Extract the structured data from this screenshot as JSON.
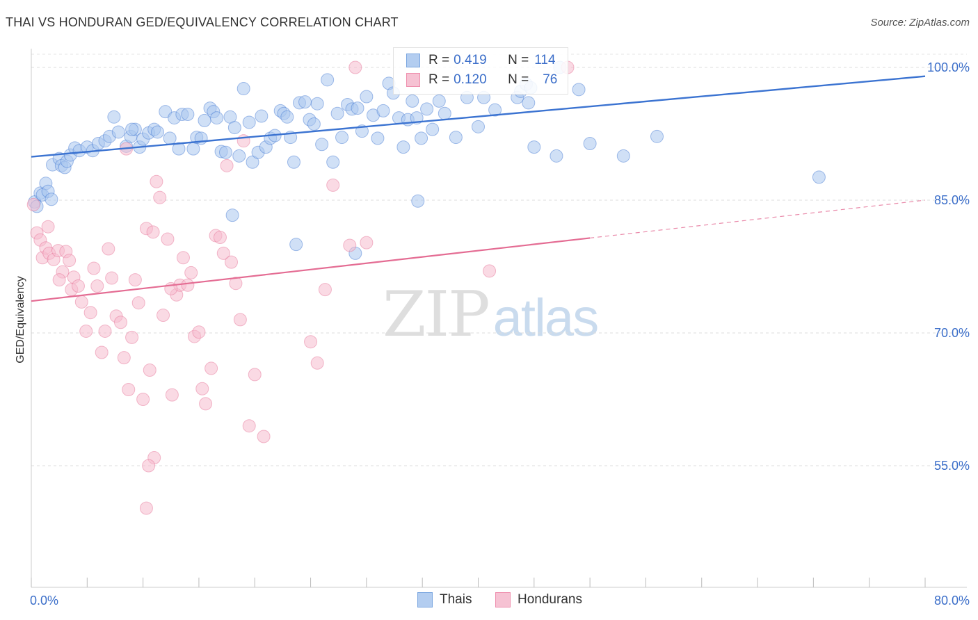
{
  "header": {
    "title": "THAI VS HONDURAN GED/EQUIVALENCY CORRELATION CHART",
    "source": "Source: ZipAtlas.com"
  },
  "watermark": {
    "zip": "ZIP",
    "atlas": "atlas"
  },
  "legend": {
    "rows": [
      {
        "r_label": "R = ",
        "r_value": "0.419",
        "n_label": "N = ",
        "n_value": "114",
        "color": "#7aa6e0",
        "fill": "#b3cdf0"
      },
      {
        "r_label": "R = ",
        "r_value": "0.120",
        "n_label": "N = ",
        "n_value": "76",
        "color": "#ef8fae",
        "fill": "#f6c2d3"
      }
    ]
  },
  "bottom_legend": [
    {
      "label": "Thais",
      "color": "#7aa6e0",
      "fill": "#b3cdf0"
    },
    {
      "label": "Hondurans",
      "color": "#ef8fae",
      "fill": "#f6c2d3"
    }
  ],
  "chart_data": {
    "type": "scatter",
    "title": "THAI VS HONDURAN GED/EQUIVALENCY CORRELATION CHART",
    "xlabel": "",
    "ylabel": "GED/Equivalency",
    "xlim": [
      0,
      80
    ],
    "ylim": [
      40,
      101.5
    ],
    "x_tick_labels": [
      {
        "value": 0,
        "label": "0.0%"
      },
      {
        "value": 80,
        "label": "80.0%"
      }
    ],
    "y_tick_labels": [
      {
        "value": 100,
        "label": "100.0%"
      },
      {
        "value": 85,
        "label": "85.0%"
      },
      {
        "value": 70,
        "label": "70.0%"
      },
      {
        "value": 55,
        "label": "55.0%"
      }
    ],
    "grid": "horizontal-dashed",
    "legend_position": "top-center",
    "series": [
      {
        "name": "Thais",
        "color": "#3b73d1",
        "point_color": "#a9c6ee",
        "trend": {
          "x": [
            0,
            80
          ],
          "y": [
            89.9,
            99.0
          ],
          "dashed_from": null
        },
        "points": [
          [
            0.3,
            84.8
          ],
          [
            0.5,
            84.3
          ],
          [
            0.8,
            85.8
          ],
          [
            1.0,
            85.6
          ],
          [
            1.3,
            86.9
          ],
          [
            1.5,
            86.0
          ],
          [
            1.8,
            85.1
          ],
          [
            1.9,
            89.0
          ],
          [
            2.5,
            89.7
          ],
          [
            2.7,
            88.9
          ],
          [
            3.0,
            88.7
          ],
          [
            3.2,
            89.4
          ],
          [
            3.5,
            90.1
          ],
          [
            3.9,
            90.9
          ],
          [
            4.3,
            90.6
          ],
          [
            5.0,
            91.0
          ],
          [
            5.5,
            90.6
          ],
          [
            6.0,
            91.4
          ],
          [
            6.6,
            91.7
          ],
          [
            7.0,
            92.2
          ],
          [
            7.4,
            94.4
          ],
          [
            7.8,
            92.7
          ],
          [
            8.5,
            91.1
          ],
          [
            8.9,
            92.2
          ],
          [
            9.3,
            93.0
          ],
          [
            9.0,
            93.0
          ],
          [
            9.7,
            91.0
          ],
          [
            10.0,
            91.9
          ],
          [
            10.5,
            92.6
          ],
          [
            11.0,
            93.0
          ],
          [
            11.3,
            92.7
          ],
          [
            12.0,
            95.0
          ],
          [
            12.4,
            92.0
          ],
          [
            12.8,
            94.3
          ],
          [
            13.2,
            90.8
          ],
          [
            13.5,
            94.7
          ],
          [
            14.0,
            94.7
          ],
          [
            14.5,
            90.8
          ],
          [
            14.8,
            92.1
          ],
          [
            15.2,
            92.0
          ],
          [
            15.5,
            94.0
          ],
          [
            16.0,
            95.4
          ],
          [
            16.3,
            95.0
          ],
          [
            16.6,
            94.3
          ],
          [
            17.0,
            90.5
          ],
          [
            17.4,
            90.4
          ],
          [
            17.8,
            94.4
          ],
          [
            18.2,
            93.2
          ],
          [
            18.6,
            90.0
          ],
          [
            19.0,
            97.6
          ],
          [
            19.5,
            93.8
          ],
          [
            19.8,
            89.3
          ],
          [
            20.3,
            90.4
          ],
          [
            20.6,
            94.5
          ],
          [
            21.0,
            91.0
          ],
          [
            21.4,
            92.0
          ],
          [
            21.8,
            92.3
          ],
          [
            22.3,
            95.1
          ],
          [
            22.6,
            94.8
          ],
          [
            22.9,
            94.4
          ],
          [
            23.2,
            92.1
          ],
          [
            23.5,
            89.3
          ],
          [
            24.0,
            96.0
          ],
          [
            24.5,
            96.1
          ],
          [
            24.9,
            94.1
          ],
          [
            25.3,
            93.6
          ],
          [
            25.6,
            95.9
          ],
          [
            26.0,
            91.3
          ],
          [
            26.5,
            98.6
          ],
          [
            27.0,
            89.3
          ],
          [
            27.4,
            94.8
          ],
          [
            27.8,
            92.1
          ],
          [
            28.3,
            95.8
          ],
          [
            28.7,
            95.3
          ],
          [
            29.2,
            95.4
          ],
          [
            29.6,
            92.8
          ],
          [
            30.0,
            96.7
          ],
          [
            30.6,
            94.6
          ],
          [
            31.0,
            92.0
          ],
          [
            31.5,
            95.1
          ],
          [
            32.0,
            98.2
          ],
          [
            32.4,
            97.1
          ],
          [
            32.9,
            94.3
          ],
          [
            33.3,
            91.0
          ],
          [
            33.7,
            94.1
          ],
          [
            34.1,
            96.2
          ],
          [
            34.5,
            94.3
          ],
          [
            34.9,
            92.0
          ],
          [
            35.4,
            95.3
          ],
          [
            35.9,
            93.0
          ],
          [
            36.5,
            96.2
          ],
          [
            37.0,
            94.8
          ],
          [
            38.0,
            92.1
          ],
          [
            39.0,
            96.6
          ],
          [
            40.0,
            93.3
          ],
          [
            40.5,
            96.6
          ],
          [
            41.5,
            95.2
          ],
          [
            43.5,
            96.6
          ],
          [
            43.8,
            97.3
          ],
          [
            44.3,
            98.1
          ],
          [
            44.7,
            97.7
          ],
          [
            47.3,
            100.0
          ],
          [
            49.0,
            97.5
          ],
          [
            50.0,
            91.4
          ],
          [
            53.0,
            90.0
          ],
          [
            56.0,
            92.2
          ],
          [
            70.5,
            87.6
          ],
          [
            18.0,
            83.3
          ],
          [
            23.7,
            80.0
          ],
          [
            29.0,
            79.0
          ],
          [
            34.6,
            84.9
          ],
          [
            47.0,
            90.0
          ],
          [
            45.0,
            91.0
          ],
          [
            44.5,
            96.0
          ]
        ]
      },
      {
        "name": "Hondurans",
        "color": "#e46c93",
        "point_color": "#f5bccd",
        "trend": {
          "x": [
            0,
            80
          ],
          "y": [
            73.6,
            85.0
          ],
          "dashed_from": 50
        },
        "points": [
          [
            0.2,
            84.5
          ],
          [
            0.5,
            81.3
          ],
          [
            0.8,
            80.5
          ],
          [
            1.0,
            78.5
          ],
          [
            1.3,
            79.6
          ],
          [
            1.6,
            79.0
          ],
          [
            2.0,
            78.3
          ],
          [
            2.4,
            79.3
          ],
          [
            2.8,
            76.9
          ],
          [
            3.1,
            79.2
          ],
          [
            3.4,
            78.2
          ],
          [
            3.6,
            74.9
          ],
          [
            3.8,
            76.3
          ],
          [
            4.2,
            75.3
          ],
          [
            4.5,
            73.5
          ],
          [
            4.9,
            70.2
          ],
          [
            5.3,
            72.3
          ],
          [
            5.6,
            77.3
          ],
          [
            5.9,
            75.3
          ],
          [
            6.3,
            67.8
          ],
          [
            6.6,
            70.2
          ],
          [
            6.9,
            79.5
          ],
          [
            7.2,
            76.2
          ],
          [
            7.6,
            71.9
          ],
          [
            8.0,
            71.2
          ],
          [
            8.3,
            67.2
          ],
          [
            8.7,
            63.6
          ],
          [
            9.0,
            69.5
          ],
          [
            9.3,
            76.0
          ],
          [
            9.6,
            73.4
          ],
          [
            10.0,
            62.5
          ],
          [
            10.3,
            81.8
          ],
          [
            10.6,
            65.8
          ],
          [
            10.9,
            81.4
          ],
          [
            11.2,
            87.1
          ],
          [
            11.5,
            85.3
          ],
          [
            11.8,
            72.0
          ],
          [
            12.2,
            80.6
          ],
          [
            12.6,
            63.0
          ],
          [
            13.0,
            74.3
          ],
          [
            13.3,
            75.4
          ],
          [
            13.6,
            78.5
          ],
          [
            14.0,
            75.4
          ],
          [
            14.3,
            76.8
          ],
          [
            14.6,
            69.6
          ],
          [
            15.0,
            70.1
          ],
          [
            15.3,
            63.7
          ],
          [
            15.6,
            62.0
          ],
          [
            16.1,
            66.0
          ],
          [
            16.5,
            81.0
          ],
          [
            16.9,
            80.8
          ],
          [
            17.2,
            79.0
          ],
          [
            17.5,
            88.9
          ],
          [
            17.9,
            78.0
          ],
          [
            18.3,
            75.6
          ],
          [
            18.7,
            71.5
          ],
          [
            19.0,
            91.7
          ],
          [
            19.5,
            59.5
          ],
          [
            20.0,
            65.3
          ],
          [
            20.8,
            58.3
          ],
          [
            11.0,
            55.9
          ],
          [
            10.5,
            55.0
          ],
          [
            10.3,
            50.2
          ],
          [
            25.0,
            69.0
          ],
          [
            25.6,
            66.6
          ],
          [
            26.3,
            74.9
          ],
          [
            27.0,
            86.7
          ],
          [
            28.5,
            79.9
          ],
          [
            29.0,
            100.0
          ],
          [
            30.0,
            80.2
          ],
          [
            41.0,
            77.0
          ],
          [
            48.0,
            100.0
          ],
          [
            12.5,
            75.0
          ],
          [
            8.5,
            90.8
          ],
          [
            2.5,
            76.0
          ],
          [
            1.5,
            82.0
          ]
        ]
      }
    ]
  }
}
